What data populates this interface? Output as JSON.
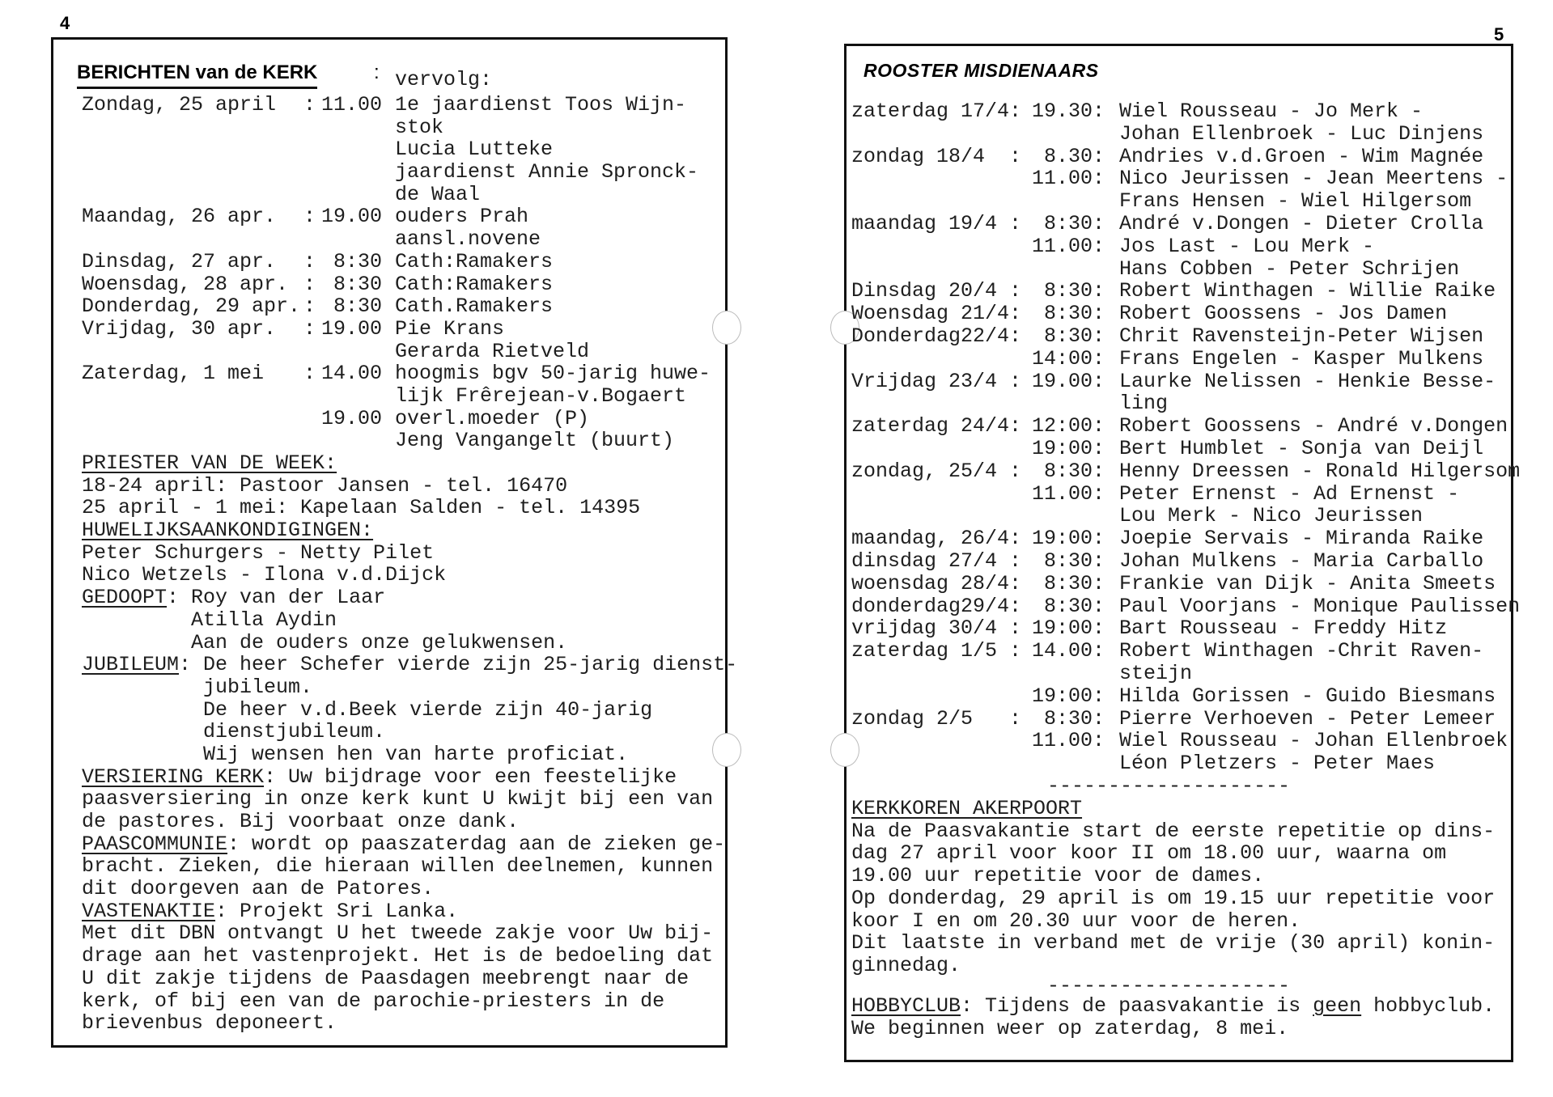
{
  "left": {
    "page_number": "4",
    "heading": "BERICHTEN van de KERK",
    "heading_colon": ":",
    "continued": "vervolg:",
    "schedule": [
      {
        "day": "Zondag, 25 april",
        "colon": ":",
        "time": "11.00",
        "text": "1e jaardienst Toos Wijn-"
      },
      {
        "day": "",
        "colon": "",
        "time": "",
        "text": "stok"
      },
      {
        "day": "",
        "colon": "",
        "time": "",
        "text": "Lucia Lutteke"
      },
      {
        "day": "",
        "colon": "",
        "time": "",
        "text": "jaardienst Annie Spronck-"
      },
      {
        "day": "",
        "colon": "",
        "time": "",
        "text": "de Waal"
      },
      {
        "day": "Maandag, 26 apr.",
        "colon": ":",
        "time": "19.00",
        "text": "ouders Prah"
      },
      {
        "day": "",
        "colon": "",
        "time": "",
        "text": "aansl.novene"
      },
      {
        "day": "Dinsdag, 27 apr.",
        "colon": ":",
        "time": "8:30",
        "text": "Cath:Ramakers"
      },
      {
        "day": "Woensdag, 28 apr.",
        "colon": ":",
        "time": "8:30",
        "text": "Cath:Ramakers"
      },
      {
        "day": "Donderdag, 29 apr.",
        "colon": ":",
        "time": "8:30",
        "text": "Cath.Ramakers"
      },
      {
        "day": "Vrijdag, 30 apr.",
        "colon": ":",
        "time": "19.00",
        "text": "Pie Krans"
      },
      {
        "day": "",
        "colon": "",
        "time": "",
        "text": "Gerarda Rietveld"
      },
      {
        "day": "Zaterdag, 1 mei",
        "colon": ":",
        "time": "14.00",
        "text": "hoogmis bgv 50-jarig huwe-"
      },
      {
        "day": "",
        "colon": "",
        "time": "",
        "text": "lijk Frêrejean-v.Bogaert"
      },
      {
        "day": "",
        "colon": "",
        "time": "19.00",
        "text": "overl.moeder (P)"
      },
      {
        "day": "",
        "colon": "",
        "time": "",
        "text": "Jeng Vangangelt (buurt)"
      }
    ],
    "lines": [
      [
        {
          "t": "PRIESTER VAN DE WEEK:",
          "u": true
        }
      ],
      [
        {
          "t": "18-24 april: Pastoor Jansen - tel. 16470"
        }
      ],
      [
        {
          "t": "25 april - 1 mei: Kapelaan Salden - tel. 14395"
        }
      ],
      [
        {
          "t": "HUWELIJKSAANKONDIGINGEN:",
          "u": true
        }
      ],
      [
        {
          "t": "Peter Schurgers - Netty Pilet"
        }
      ],
      [
        {
          "t": "Nico Wetzels - Ilona v.d.Dijck"
        }
      ],
      [
        {
          "t": "GEDOOPT",
          "u": true
        },
        {
          "t": ": Roy van der Laar"
        }
      ],
      [
        {
          "t": "         Atilla Aydin"
        }
      ],
      [
        {
          "t": "         Aan de ouders onze gelukwensen."
        }
      ],
      [
        {
          "t": "JUBILEUM",
          "u": true
        },
        {
          "t": ": De heer Schefer vierde zijn 25-jarig dienst-"
        }
      ],
      [
        {
          "t": "          jubileum."
        }
      ],
      [
        {
          "t": "          De heer v.d.Beek vierde zijn 40-jarig"
        }
      ],
      [
        {
          "t": "          dienstjubileum."
        }
      ],
      [
        {
          "t": "          Wij wensen hen van harte proficiat."
        }
      ],
      [
        {
          "t": "VERSIERING KERK",
          "u": true
        },
        {
          "t": ": Uw bijdrage voor een feestelijke"
        }
      ],
      [
        {
          "t": "paasversiering in onze kerk kunt U kwijt bij een van"
        }
      ],
      [
        {
          "t": "de pastores. Bij voorbaat onze dank."
        }
      ],
      [
        {
          "t": "PAASCOMMUNIE",
          "u": true
        },
        {
          "t": ": wordt op paaszaterdag aan de zieken ge-"
        }
      ],
      [
        {
          "t": "bracht. Zieken, die hieraan willen deelnemen, kunnen"
        }
      ],
      [
        {
          "t": "dit doorgeven aan de Patores."
        }
      ],
      [
        {
          "t": "VASTENAKTIE",
          "u": true
        },
        {
          "t": ": Projekt Sri Lanka."
        }
      ],
      [
        {
          "t": "Met dit DBN ontvangt U het tweede zakje voor Uw bij-"
        }
      ],
      [
        {
          "t": "drage aan het vastenprojekt. Het is de bedoeling dat"
        }
      ],
      [
        {
          "t": "U dit zakje tijdens de Paasdagen meebrengt naar de"
        }
      ],
      [
        {
          "t": "kerk, of bij een van de parochie-priesters in de"
        }
      ],
      [
        {
          "t": "brievenbus deponeert."
        }
      ]
    ]
  },
  "right": {
    "page_number": "5",
    "heading": "ROOSTER MISDIENAARS",
    "schedule": [
      {
        "day": "zaterdag 17/4:",
        "time": "19.30:",
        "names": "Wiel Rousseau - Jo Merk -"
      },
      {
        "day": "",
        "time": "",
        "names": "Johan Ellenbroek - Luc Dinjens"
      },
      {
        "day": "zondag 18/4  :",
        "time": "8.30:",
        "names": "Andries v.d.Groen - Wim Magnée"
      },
      {
        "day": "",
        "time": "11.00:",
        "names": "Nico Jeurissen - Jean Meertens -"
      },
      {
        "day": "",
        "time": "",
        "names": "Frans Hensen - Wiel Hilgersom"
      },
      {
        "day": "maandag 19/4 :",
        "time": "8:30:",
        "names": "André v.Dongen - Dieter Crolla"
      },
      {
        "day": "",
        "time": "11.00:",
        "names": "Jos Last - Lou Merk -"
      },
      {
        "day": "",
        "time": "",
        "names": "Hans Cobben - Peter Schrijen"
      },
      {
        "day": "Dinsdag 20/4 :",
        "time": "8:30:",
        "names": "Robert Winthagen - Willie Raike"
      },
      {
        "day": "Woensdag 21/4:",
        "time": "8:30:",
        "names": "Robert Goossens - Jos Damen"
      },
      {
        "day": "Donderdag22/4:",
        "time": "8:30:",
        "names": "Chrit Ravensteijn-Peter Wijsen"
      },
      {
        "day": "",
        "time": "14:00:",
        "names": "Frans Engelen - Kasper Mulkens"
      },
      {
        "day": "Vrijdag 23/4 :",
        "time": "19.00:",
        "names": "Laurke Nelissen - Henkie Besse-"
      },
      {
        "day": "",
        "time": "",
        "names": "ling"
      },
      {
        "day": "zaterdag 24/4:",
        "time": "12:00:",
        "names": "Robert Goossens - André v.Dongen"
      },
      {
        "day": "",
        "time": "19:00:",
        "names": "Bert Humblet - Sonja van Deijl"
      },
      {
        "day": "zondag, 25/4 :",
        "time": "8:30:",
        "names": "Henny Dreessen - Ronald Hilgersom"
      },
      {
        "day": "",
        "time": "11.00:",
        "names": "Peter Ernenst - Ad Ernenst -"
      },
      {
        "day": "",
        "time": "",
        "names": "Lou Merk - Nico Jeurissen"
      },
      {
        "day": "maandag, 26/4:",
        "time": "19:00:",
        "names": "Joepie Servais - Miranda Raike"
      },
      {
        "day": "dinsdag 27/4 :",
        "time": "8:30:",
        "names": "Johan Mulkens - Maria Carballo"
      },
      {
        "day": "woensdag 28/4:",
        "time": "8:30:",
        "names": "Frankie van Dijk - Anita Smeets"
      },
      {
        "day": "donderdag29/4:",
        "time": "8:30:",
        "names": "Paul Voorjans - Monique Paulissen"
      },
      {
        "day": "vrijdag 30/4 :",
        "time": "19:00:",
        "names": "Bart Rousseau - Freddy Hitz"
      },
      {
        "day": "zaterdag 1/5 :",
        "time": "14.00:",
        "names": "Robert Winthagen -Chrit Raven-"
      },
      {
        "day": "",
        "time": "",
        "names": "steijn"
      },
      {
        "day": "",
        "time": "19:00:",
        "names": "Hilda Gorissen - Guido Biesmans"
      },
      {
        "day": "zondag 2/5   :",
        "time": "8:30:",
        "names": "Pierre Verhoeven - Peter Lemeer"
      },
      {
        "day": "",
        "time": "11.00:",
        "names": "Wiel Rousseau - Johan Ellenbroek"
      },
      {
        "day": "",
        "time": "",
        "names": "Léon Pletzers - Peter Maes"
      }
    ],
    "separator": "--------------------",
    "lines": [
      [
        {
          "t": "KERKKOREN AKERPOORT",
          "u": true
        }
      ],
      [
        {
          "t": "Na de Paasvakantie start de eerste repetitie op dins-"
        }
      ],
      [
        {
          "t": "dag 27 april voor koor II om 18.00 uur, waarna om"
        }
      ],
      [
        {
          "t": "19.00 uur repetitie voor de dames."
        }
      ],
      [
        {
          "t": "Op donderdag, 29 april is om 19.15 uur repetitie voor"
        }
      ],
      [
        {
          "t": "koor I en om 20.30 uur voor de heren."
        }
      ],
      [
        {
          "t": "Dit laatste in verband met de vrije (30 april) konin-"
        }
      ],
      [
        {
          "t": "ginnedag."
        }
      ]
    ],
    "closing_lines": [
      [
        {
          "t": "HOBBYCLUB",
          "u": true
        },
        {
          "t": ": Tijdens de paasvakantie is "
        },
        {
          "t": "geen",
          "u": true
        },
        {
          "t": " hobbyclub."
        }
      ],
      [
        {
          "t": "We beginnen weer op zaterdag, 8 mei."
        }
      ]
    ]
  }
}
